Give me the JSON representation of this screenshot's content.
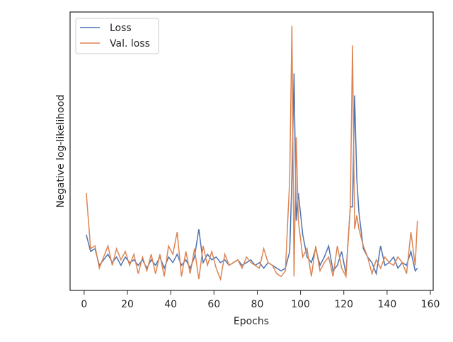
{
  "chart_data": {
    "type": "line",
    "xlabel": "Epochs",
    "ylabel": "Negative log-likelihood",
    "x": [
      1,
      3,
      5,
      7,
      9,
      11,
      13,
      15,
      17,
      19,
      21,
      23,
      25,
      27,
      29,
      31,
      33,
      35,
      37,
      39,
      41,
      43,
      45,
      47,
      49,
      51,
      53,
      55,
      57,
      59,
      61,
      63,
      65,
      67,
      69,
      71,
      73,
      75,
      77,
      79,
      81,
      83,
      85,
      87,
      89,
      91,
      93,
      95,
      96,
      97,
      98,
      99,
      101,
      103,
      105,
      107,
      109,
      111,
      113,
      115,
      117,
      119,
      121,
      123,
      124,
      125,
      126,
      127,
      129,
      131,
      133,
      135,
      137,
      139,
      141,
      143,
      145,
      147,
      149,
      151,
      153,
      154
    ],
    "series": [
      {
        "name": "Loss",
        "color": "#4c72b0",
        "values": [
          20,
          14,
          15,
          9,
          11,
          13,
          10,
          12,
          9,
          12,
          10,
          11,
          9,
          11,
          8,
          11,
          9,
          12,
          8,
          12,
          10,
          13,
          9,
          11,
          8,
          12,
          22,
          10,
          13,
          11,
          12,
          10,
          11,
          9,
          10,
          11,
          9,
          10,
          11,
          9,
          10,
          8,
          10,
          9,
          8,
          7,
          8,
          14,
          40,
          78,
          25,
          35,
          20,
          12,
          10,
          15,
          9,
          12,
          16,
          7,
          9,
          14,
          6,
          30,
          30,
          70,
          40,
          28,
          15,
          12,
          10,
          6,
          16,
          9,
          10,
          12,
          8,
          10,
          9,
          14,
          7,
          8
        ]
      },
      {
        "name": "Val. loss",
        "color": "#dd8452",
        "values": [
          35,
          15,
          16,
          8,
          12,
          16,
          9,
          15,
          11,
          14,
          9,
          13,
          6,
          12,
          7,
          13,
          6,
          13,
          5,
          16,
          13,
          21,
          5,
          14,
          6,
          15,
          4,
          16,
          9,
          14,
          8,
          4,
          13,
          9,
          10,
          11,
          8,
          12,
          10,
          9,
          8,
          15,
          10,
          9,
          6,
          5,
          7,
          40,
          95,
          5,
          55,
          25,
          12,
          15,
          5,
          16,
          7,
          10,
          12,
          5,
          16,
          8,
          5,
          30,
          88,
          22,
          27,
          22,
          16,
          12,
          6,
          11,
          8,
          12,
          10,
          9,
          12,
          10,
          6,
          21,
          9,
          25
        ]
      }
    ],
    "xlim": [
      -6.5,
      161.3
    ],
    "xticks": [
      0,
      20,
      40,
      60,
      80,
      100,
      120,
      140,
      160
    ],
    "ylim": [
      0,
      100
    ],
    "legend": "upper left"
  }
}
